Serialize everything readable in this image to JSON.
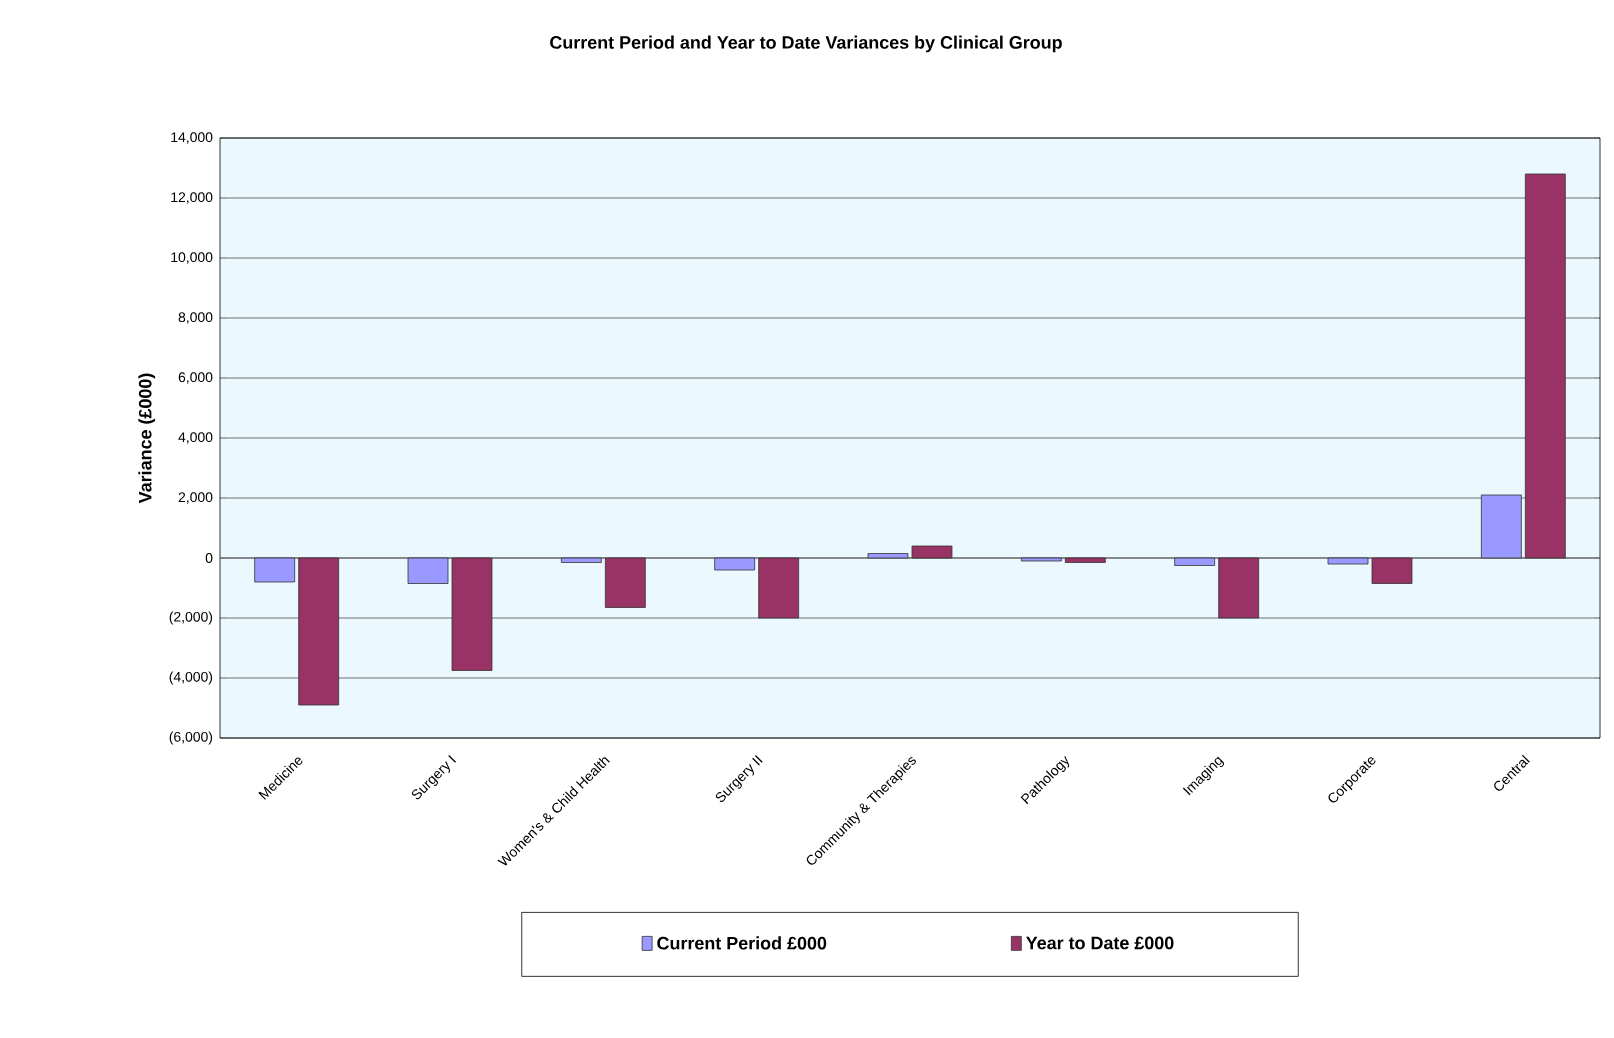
{
  "chart_data": {
    "type": "bar",
    "title": "Current Period and Year to Date Variances by Clinical Group",
    "ylabel": "Variance (£000)",
    "categories": [
      "Medicine",
      "Surgery I",
      "Women's & Child Health",
      "Surgery II",
      "Community & Therapies",
      "Pathology",
      "Imaging",
      "Corporate",
      "Central"
    ],
    "series": [
      {
        "name": "Current Period £000",
        "color": "#9999ff",
        "values": [
          -800,
          -850,
          -150,
          -400,
          150,
          -100,
          -250,
          -200,
          2100
        ]
      },
      {
        "name": "Year to Date £000",
        "color": "#993366",
        "values": [
          -4900,
          -3750,
          -1650,
          -2000,
          400,
          -150,
          -2000,
          -850,
          12800
        ]
      }
    ],
    "ylim": [
      -6000,
      14000
    ],
    "yticks": [
      {
        "value": -6000,
        "label": "(6,000)"
      },
      {
        "value": -4000,
        "label": "(4,000)"
      },
      {
        "value": -2000,
        "label": "(2,000)"
      },
      0,
      {
        "value": 2000,
        "label": "2,000"
      },
      {
        "value": 4000,
        "label": "4,000"
      },
      {
        "value": 6000,
        "label": "6,000"
      },
      {
        "value": 8000,
        "label": "8,000"
      },
      {
        "value": 10000,
        "label": "10,000"
      },
      {
        "value": 12000,
        "label": "12,000"
      },
      {
        "value": 14000,
        "label": "14,000"
      }
    ],
    "grid": "y",
    "legend": "bottom"
  }
}
